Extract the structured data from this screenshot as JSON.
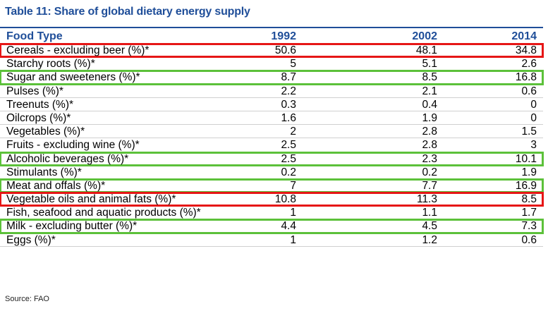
{
  "title": "Table 11: Share of global dietary energy supply",
  "source": "Source: FAO",
  "colors": {
    "accent": "#1f4e99",
    "highlight_red": "#e61616",
    "highlight_green": "#5cc13a"
  },
  "chart_data": {
    "type": "table",
    "columns": [
      "Food Type",
      "1992",
      "2002",
      "2014"
    ],
    "rows": [
      {
        "label": "Cereals - excluding beer (%)*",
        "values": [
          "50.6",
          "48.1",
          "34.8"
        ],
        "highlight": "red"
      },
      {
        "label": "Starchy roots (%)*",
        "values": [
          "5",
          "5.1",
          "2.6"
        ],
        "highlight": ""
      },
      {
        "label": "Sugar and sweeteners (%)*",
        "values": [
          "8.7",
          "8.5",
          "16.8"
        ],
        "highlight": "green"
      },
      {
        "label": "Pulses (%)*",
        "values": [
          "2.2",
          "2.1",
          "0.6"
        ],
        "highlight": ""
      },
      {
        "label": "Treenuts (%)*",
        "values": [
          "0.3",
          "0.4",
          "0"
        ],
        "highlight": ""
      },
      {
        "label": "Oilcrops (%)*",
        "values": [
          "1.6",
          "1.9",
          "0"
        ],
        "highlight": ""
      },
      {
        "label": "Vegetables (%)*",
        "values": [
          "2",
          "2.8",
          "1.5"
        ],
        "highlight": ""
      },
      {
        "label": "Fruits - excluding wine (%)*",
        "values": [
          "2.5",
          "2.8",
          "3"
        ],
        "highlight": ""
      },
      {
        "label": "Alcoholic beverages (%)*",
        "values": [
          "2.5",
          "2.3",
          "10.1"
        ],
        "highlight": "green"
      },
      {
        "label": "Stimulants (%)*",
        "values": [
          "0.2",
          "0.2",
          "1.9"
        ],
        "highlight": ""
      },
      {
        "label": "Meat and offals (%)*",
        "values": [
          "7",
          "7.7",
          "16.9"
        ],
        "highlight": "green"
      },
      {
        "label": "Vegetable oils and animal fats (%)*",
        "values": [
          "10.8",
          "11.3",
          "8.5"
        ],
        "highlight": "red"
      },
      {
        "label": "Fish, seafood and aquatic products (%)*",
        "values": [
          "1",
          "1.1",
          "1.7"
        ],
        "highlight": ""
      },
      {
        "label": "Milk - excluding butter (%)*",
        "values": [
          "4.4",
          "4.5",
          "7.3"
        ],
        "highlight": "green"
      },
      {
        "label": "Eggs (%)*",
        "values": [
          "1",
          "1.2",
          "0.6"
        ],
        "highlight": ""
      }
    ]
  }
}
